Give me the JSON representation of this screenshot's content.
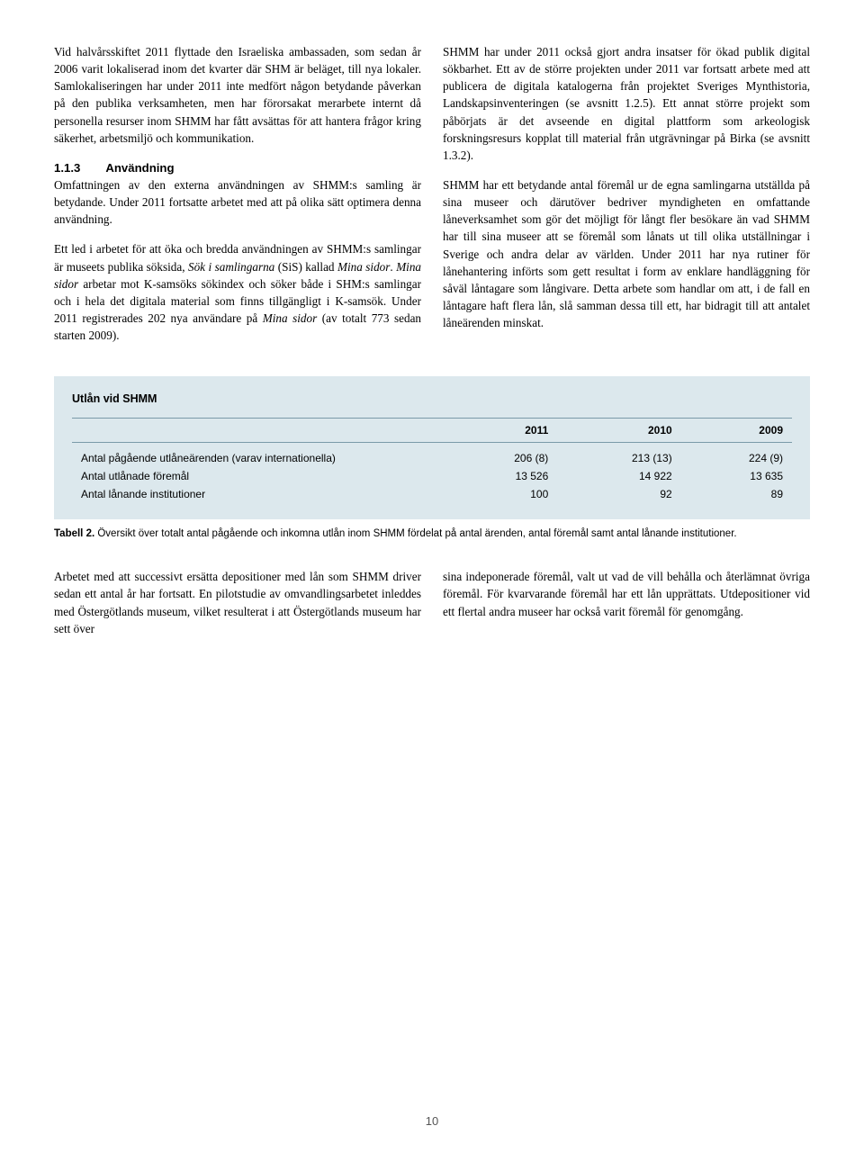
{
  "top": {
    "left": {
      "p1": "Vid halvårsskiftet 2011 flyttade den Israeliska ambassaden, som sedan år 2006 varit lokaliserad inom det kvarter där SHM är beläget, till nya lokaler. Samlokaliseringen har under 2011 inte medfört någon betydande påverkan på den publika verksamheten, men har förorsakat merarbete internt då personella resurser inom SHMM har fått avsättas för att hantera frågor kring säkerhet, arbetsmiljö och kommunikation.",
      "sec_num": "1.1.3",
      "sec_title": "Användning",
      "p2a": "Omfattningen av den externa användningen av SHMM:s samling är betydande. Under 2011 fortsatte arbetet med att på olika sätt optimera denna användning.",
      "p3a": "Ett led i arbetet för att öka och bredda användningen av SHMM:s samlingar är museets publika söksida, ",
      "p3b": "Sök i samlingarna",
      "p3c": " (SiS) kallad ",
      "p3d": "Mina sidor",
      "p3e": ". ",
      "p3f": "Mina sidor",
      "p3g": " arbetar mot K-samsöks sökindex och söker både i SHM:s samlingar och i hela det digitala material som finns tillgängligt i K-samsök. Under 2011 registrerades 202 nya användare på ",
      "p3h": "Mina sidor",
      "p3i": " (av totalt 773 sedan starten 2009)."
    },
    "right": {
      "p1": "SHMM har under 2011 också gjort andra insatser för ökad publik digital sökbarhet. Ett av de större projekten under 2011 var fortsatt arbete med att publicera de digitala katalogerna från projektet Sveriges Mynthistoria, Landskapsinventeringen (se avsnitt 1.2.5). Ett annat större projekt som påbörjats är det avseende en digital plattform som arkeologisk forskningsresurs kopplat till material från utgrävningar på Birka (se avsnitt 1.3.2).",
      "p2": "SHMM har ett betydande antal föremål ur de egna samlingarna utställda på sina museer och därutöver bedriver myndigheten en omfattande låneverksamhet som gör det möjligt för långt fler besökare än vad SHMM har till sina museer att se föremål som lånats ut till olika utställningar i Sverige och andra delar av världen. Under 2011 har nya rutiner för lånehantering införts som gett resultat i form av enklare handläggning för såväl låntagare som långivare. Detta arbete som handlar om att, i de fall en låntagare haft flera lån, slå samman dessa till ett, har bidragit till att antalet låneärenden minskat."
    }
  },
  "table": {
    "title": "Utlån vid SHMM",
    "columns": [
      "",
      "2011",
      "2010",
      "2009"
    ],
    "rows": [
      {
        "label": "Antal pågående utlåneärenden (varav internationella)",
        "c2011": "206 (8)",
        "c2010": "213 (13)",
        "c2009": "224 (9)"
      },
      {
        "label": "Antal utlånade föremål",
        "c2011": "13 526",
        "c2010": "14 922",
        "c2009": "13 635"
      },
      {
        "label": "Antal lånande institutioner",
        "c2011": "100",
        "c2010": "92",
        "c2009": "89"
      }
    ],
    "caption_bold": "Tabell 2.",
    "caption_rest": " Översikt över totalt antal pågående och inkomna utlån inom SHMM fördelat på antal ärenden, antal föremål samt antal lånande institutioner.",
    "bg_color": "#dce8ed",
    "border_color": "#7a9aa8"
  },
  "bottom": {
    "left": "Arbetet med att successivt ersätta depositioner med lån som SHMM driver sedan ett antal år har fortsatt. En pilotstudie av omvandlingsarbetet inleddes med Östergötlands museum, vilket resulterat i att Östergötlands museum har sett över",
    "right": "sina indeponerade föremål, valt ut vad de vill behålla och återlämnat övriga föremål. För kvarvarande föremål har ett lån upprättats. Utdepositioner vid ett flertal andra museer har också varit föremål för genomgång."
  },
  "page_number": "10"
}
